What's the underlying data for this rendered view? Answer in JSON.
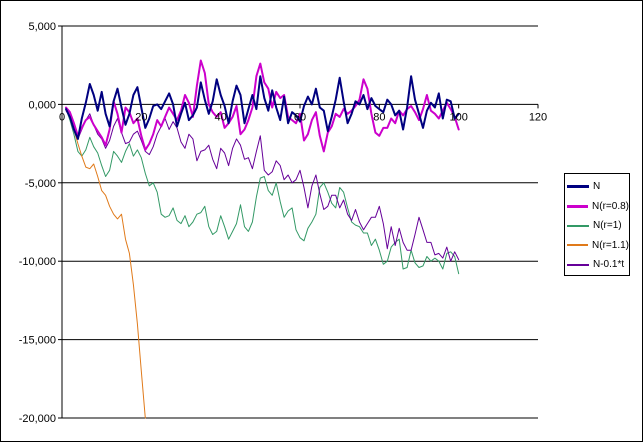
{
  "chart_data": {
    "type": "line",
    "title": "",
    "xlabel": "",
    "ylabel": "",
    "xlim": [
      0,
      120
    ],
    "ylim": [
      -20,
      5
    ],
    "x_ticks": [
      "0",
      "20",
      "40",
      "60",
      "80",
      "100",
      "120"
    ],
    "y_ticks": [
      "5,000",
      "0,000",
      "-5,000",
      "-10,000",
      "-15,000",
      "-20,000"
    ],
    "y_tick_values": [
      5,
      0,
      -5,
      -10,
      -15,
      -20
    ],
    "x_tick_values": [
      0,
      20,
      40,
      60,
      80,
      100,
      120
    ],
    "gridlines": "horizontal",
    "legend_position": "right",
    "x": [
      1,
      2,
      3,
      4,
      5,
      6,
      7,
      8,
      9,
      10,
      11,
      12,
      13,
      14,
      15,
      16,
      17,
      18,
      19,
      20,
      21,
      22,
      23,
      24,
      25,
      26,
      27,
      28,
      29,
      30,
      31,
      32,
      33,
      34,
      35,
      36,
      37,
      38,
      39,
      40,
      41,
      42,
      43,
      44,
      45,
      46,
      47,
      48,
      49,
      50,
      51,
      52,
      53,
      54,
      55,
      56,
      57,
      58,
      59,
      60,
      61,
      62,
      63,
      64,
      65,
      66,
      67,
      68,
      69,
      70,
      71,
      72,
      73,
      74,
      75,
      76,
      77,
      78,
      79,
      80,
      81,
      82,
      83,
      84,
      85,
      86,
      87,
      88,
      89,
      90,
      91,
      92,
      93,
      94,
      95,
      96,
      97,
      98,
      99,
      100
    ],
    "series": [
      {
        "name": "N",
        "color": "#000080",
        "width": 2,
        "values": [
          -0.3,
          -0.8,
          -1.6,
          -2.2,
          -0.9,
          0.1,
          1.3,
          0.6,
          -0.4,
          0.8,
          -0.6,
          -1.4,
          0.2,
          1.0,
          -0.2,
          -1.3,
          -0.6,
          0.6,
          1.1,
          -0.2,
          -1.5,
          -0.9,
          -0.1,
          0.0,
          -0.3,
          0.2,
          0.7,
          0.0,
          -1.4,
          -0.6,
          0.1,
          -1.0,
          -0.7,
          -0.2,
          1.4,
          0.3,
          -0.6,
          0.2,
          1.6,
          0.6,
          -0.1,
          -1.2,
          0.2,
          1.2,
          0.6,
          -1.2,
          -0.3,
          0.6,
          -0.3,
          1.8,
          0.4,
          -0.4,
          0.9,
          -0.2,
          -1.0,
          0.5,
          -1.2,
          -0.5,
          -0.7,
          -1.1,
          -0.1,
          0.5,
          0.0,
          1.0,
          -0.2,
          -0.4,
          -1.7,
          -0.8,
          0.3,
          1.7,
          0.2,
          -1.2,
          -0.6,
          0.2,
          0.0,
          0.6,
          -0.3,
          0.4,
          -0.1,
          -0.3,
          -0.5,
          0.3,
          0.0,
          -0.7,
          -0.4,
          -1.6,
          -0.2,
          1.8,
          0.3,
          -0.6,
          -1.5,
          -0.4,
          0.1,
          -0.2,
          0.7,
          -0.9,
          0.3,
          0.2,
          -0.9,
          -0.6
        ]
      },
      {
        "name": "N(r=0.8)",
        "color": "#cc00cc",
        "width": 2,
        "values": [
          -0.2,
          -0.5,
          -1.2,
          -2.0,
          -1.5,
          -1.0,
          -0.8,
          -1.3,
          -1.7,
          -2.1,
          -2.6,
          -1.6,
          0.2,
          -0.6,
          -1.8,
          -0.2,
          -0.5,
          -1.2,
          -0.9,
          -2.0,
          -2.9,
          -2.5,
          -1.9,
          -1.0,
          -1.4,
          -0.8,
          -0.2,
          -0.6,
          -1.0,
          -0.4,
          0.6,
          0.1,
          -0.8,
          1.2,
          2.8,
          2.0,
          0.0,
          -0.5,
          -0.8,
          -0.5,
          -1.5,
          -1.2,
          -0.8,
          -0.1,
          -1.9,
          -1.6,
          -1.0,
          -0.2,
          1.8,
          2.6,
          1.4,
          1.0,
          -0.2,
          0.8,
          0.4,
          0.6,
          -0.8,
          -1.0,
          -1.2,
          -0.6,
          -2.3,
          -1.9,
          -1.0,
          -0.5,
          -2.0,
          -3.0,
          -1.8,
          -1.4,
          -0.6,
          -0.8,
          -0.3,
          -0.6,
          -0.4,
          -0.1,
          0.3,
          1.6,
          1.0,
          -0.6,
          -1.8,
          -2.0,
          -1.5,
          -1.5,
          -0.9,
          -1.2,
          -0.4,
          -0.7,
          -0.3,
          -0.1,
          -0.5,
          -1.0,
          -0.3,
          0.6,
          -0.4,
          -0.6,
          -0.9,
          -0.4,
          0.1,
          -0.3,
          -0.8,
          -1.6
        ]
      },
      {
        "name": "N(r=1)",
        "color": "#339966",
        "width": 1,
        "values": [
          -0.3,
          -1.0,
          -1.9,
          -3.0,
          -3.3,
          -2.9,
          -2.1,
          -2.7,
          -3.1,
          -3.9,
          -4.6,
          -4.2,
          -3.0,
          -3.3,
          -3.7,
          -3.0,
          -2.5,
          -3.3,
          -2.9,
          -3.4,
          -4.4,
          -5.2,
          -5.0,
          -5.6,
          -7.0,
          -7.2,
          -7.1,
          -6.6,
          -7.4,
          -7.6,
          -7.1,
          -7.8,
          -7.5,
          -7.0,
          -6.9,
          -6.5,
          -7.8,
          -8.3,
          -8.1,
          -7.1,
          -7.8,
          -8.6,
          -8.1,
          -7.6,
          -6.4,
          -7.8,
          -8.1,
          -7.5,
          -5.9,
          -4.7,
          -4.6,
          -5.5,
          -5.8,
          -5.0,
          -6.2,
          -7.2,
          -6.8,
          -6.6,
          -8.0,
          -8.5,
          -8.7,
          -7.9,
          -7.5,
          -7.0,
          -5.3,
          -5.0,
          -5.6,
          -6.3,
          -6.6,
          -5.3,
          -5.6,
          -6.6,
          -7.5,
          -7.7,
          -7.8,
          -8.2,
          -8.2,
          -9.0,
          -8.6,
          -9.3,
          -10.2,
          -10.0,
          -9.1,
          -8.8,
          -8.6,
          -10.5,
          -10.4,
          -9.3,
          -10.1,
          -10.4,
          -10.3,
          -9.7,
          -10.0,
          -9.8,
          -10.0,
          -10.5,
          -9.5,
          -9.4,
          -9.7,
          -10.8
        ]
      },
      {
        "name": "N(r=1.1)",
        "color": "#e07a1a",
        "width": 1,
        "values": [
          -0.3,
          -0.8,
          -1.6,
          -2.5,
          -3.3,
          -4.0,
          -4.1,
          -3.8,
          -4.6,
          -5.5,
          -5.8,
          -6.5,
          -7.0,
          -7.3,
          -7.0,
          -8.6,
          -9.5,
          -11.5,
          -14.0,
          -17.0,
          -20.0,
          null,
          null,
          null,
          null,
          null,
          null,
          null,
          null,
          null,
          null,
          null,
          null,
          null,
          null,
          null,
          null,
          null,
          null,
          null,
          null,
          null,
          null,
          null,
          null,
          null,
          null,
          null,
          null,
          null,
          null,
          null,
          null,
          null,
          null,
          null,
          null,
          null,
          null,
          null,
          null,
          null,
          null,
          null,
          null,
          null,
          null,
          null,
          null,
          null,
          null,
          null,
          null,
          null,
          null,
          null,
          null,
          null,
          null,
          null,
          null,
          null,
          null,
          null,
          null,
          null,
          null,
          null,
          null,
          null,
          null,
          null,
          null,
          null,
          null,
          null,
          null,
          null,
          null,
          null
        ]
      },
      {
        "name": "N-0.1*t",
        "color": "#660099",
        "width": 1,
        "values": [
          -0.4,
          -0.8,
          -1.5,
          -2.2,
          -1.6,
          -1.0,
          -0.6,
          -1.3,
          -1.9,
          -2.2,
          -2.8,
          -2.3,
          -1.4,
          -0.9,
          -1.8,
          -2.5,
          -2.4,
          -1.9,
          -1.7,
          -2.3,
          -3.0,
          -3.2,
          -2.7,
          -1.9,
          -1.4,
          -0.9,
          -1.6,
          -1.1,
          -1.5,
          -2.4,
          -2.8,
          -1.9,
          -2.2,
          -3.6,
          -3.0,
          -2.9,
          -2.6,
          -3.5,
          -4.1,
          -2.8,
          -3.1,
          -3.9,
          -2.8,
          -2.2,
          -2.6,
          -3.5,
          -3.4,
          -4.1,
          -3.0,
          -2.0,
          -4.2,
          -4.5,
          -4.3,
          -3.6,
          -3.9,
          -4.8,
          -4.5,
          -5.0,
          -4.8,
          -4.2,
          -5.3,
          -6.6,
          -5.2,
          -4.5,
          -5.7,
          -6.7,
          -6.5,
          -5.8,
          -5.8,
          -6.6,
          -6.1,
          -7.0,
          -7.4,
          -6.7,
          -7.5,
          -8.0,
          -7.6,
          -7.2,
          -7.2,
          -6.5,
          -7.6,
          -9.2,
          -7.8,
          -9.0,
          -7.9,
          -8.8,
          -9.3,
          -9.3,
          -8.3,
          -7.2,
          -8.0,
          -8.8,
          -8.8,
          -9.6,
          -9.5,
          -9.8,
          -9.1,
          -10.0,
          -9.4,
          -9.9
        ]
      }
    ]
  },
  "legend": {
    "items": [
      "N",
      "N(r=0.8)",
      "N(r=1)",
      "N(r=1.1)",
      "N-0.1*t"
    ]
  }
}
